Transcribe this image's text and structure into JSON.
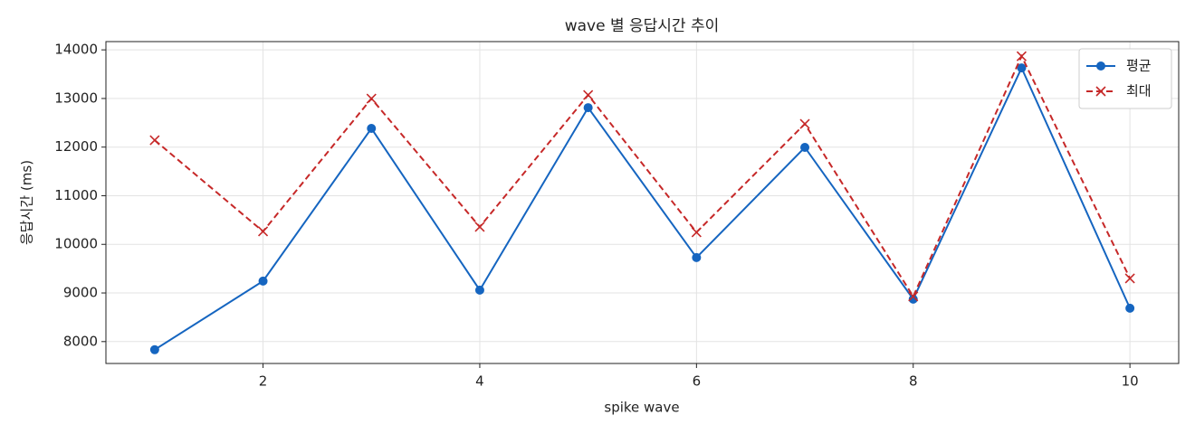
{
  "chart_data": {
    "type": "line",
    "title": "wave 별 응답시간 추이",
    "x_label": "spike wave",
    "y_label": "응답시간 (ms)",
    "x": [
      1,
      2,
      3,
      4,
      5,
      6,
      7,
      8,
      9,
      10
    ],
    "series": [
      {
        "name": "평균",
        "color": "#1565c0",
        "marker": "o",
        "linestyle": "solid",
        "values": [
          7833,
          9245,
          12384,
          9059,
          12811,
          9728,
          11994,
          8873,
          13628,
          8687
        ]
      },
      {
        "name": "최대",
        "color": "#c62828",
        "marker": "x",
        "linestyle": "dashed",
        "values": [
          12142,
          10266,
          12998,
          10359,
          13071,
          10248,
          12477,
          8929,
          13870,
          9300
        ]
      }
    ],
    "xlim": [
      0.55,
      10.45
    ],
    "ylim": [
      7550,
      14170
    ],
    "xticks": [
      2,
      4,
      6,
      8,
      10
    ],
    "yticks": [
      8000,
      9000,
      10000,
      11000,
      12000,
      13000,
      14000
    ],
    "grid": true,
    "legend": "upper right"
  }
}
